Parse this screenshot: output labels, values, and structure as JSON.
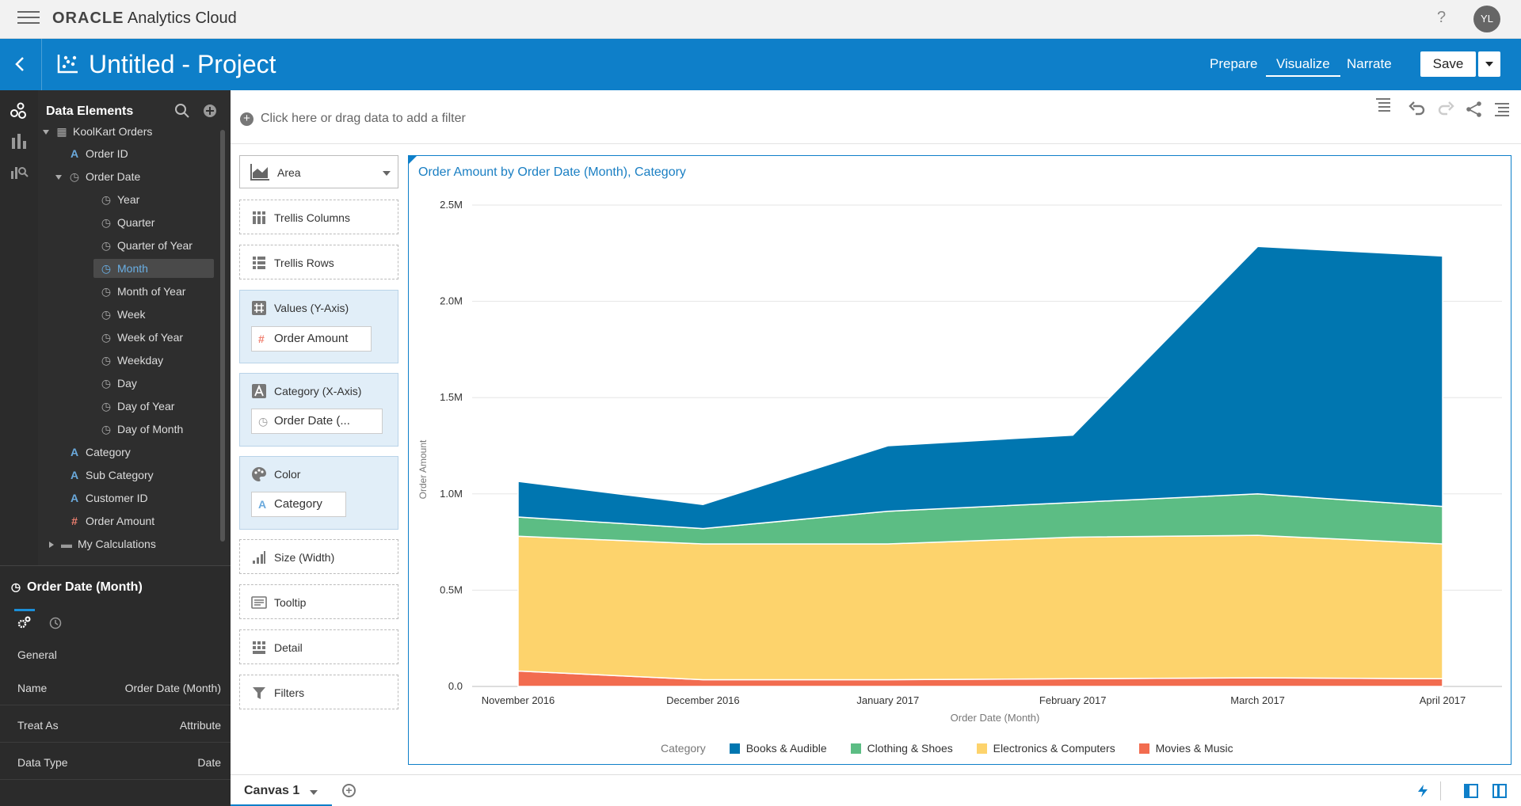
{
  "topbar": {
    "brand_strong": "ORACLE",
    "brand_rest": " Analytics Cloud",
    "help": "?",
    "avatar": "YL"
  },
  "header": {
    "project_title": "Untitled - Project",
    "tabs": [
      {
        "label": "Prepare"
      },
      {
        "label": "Visualize"
      },
      {
        "label": "Narrate"
      }
    ],
    "save_label": "Save"
  },
  "data_panel": {
    "title": "Data Elements",
    "items": [
      {
        "label": "KoolKart Orders"
      },
      {
        "label": "Order ID"
      },
      {
        "label": "Order Date"
      },
      {
        "label": "Year"
      },
      {
        "label": "Quarter"
      },
      {
        "label": "Quarter of Year"
      },
      {
        "label": "Month"
      },
      {
        "label": "Month of Year"
      },
      {
        "label": "Week"
      },
      {
        "label": "Week of Year"
      },
      {
        "label": "Weekday"
      },
      {
        "label": "Day"
      },
      {
        "label": "Day of Year"
      },
      {
        "label": "Day of Month"
      },
      {
        "label": "Category"
      },
      {
        "label": "Sub Category"
      },
      {
        "label": "Customer ID"
      },
      {
        "label": "Order Amount"
      },
      {
        "label": "My Calculations"
      }
    ]
  },
  "properties": {
    "title": "Order Date (Month)",
    "section": "General",
    "rows": [
      {
        "key": "Name",
        "value": "Order Date (Month)"
      },
      {
        "key": "Treat As",
        "value": "Attribute"
      },
      {
        "key": "Data Type",
        "value": "Date"
      }
    ]
  },
  "filterbar": {
    "placeholder": "Click here or drag data to add a filter"
  },
  "grammar": {
    "viz_type": "Area",
    "trellis_columns": "Trellis Columns",
    "trellis_rows": "Trellis Rows",
    "values_label": "Values (Y-Axis)",
    "values_pill": "Order Amount",
    "category_label": "Category (X-Axis)",
    "category_pill": "Order Date (...",
    "color_label": "Color",
    "color_pill": "Category",
    "size_label": "Size (Width)",
    "tooltip_label": "Tooltip",
    "detail_label": "Detail",
    "filters_label": "Filters"
  },
  "chart_data": {
    "type": "area",
    "stacked": true,
    "title": "Order Amount by Order Date (Month), Category",
    "xlabel": "Order Date (Month)",
    "ylabel": "Order Amount",
    "categories": [
      "November 2016",
      "December 2016",
      "January 2017",
      "February 2017",
      "March 2017",
      "April 2017"
    ],
    "ylim": [
      0,
      2500000
    ],
    "yticks": [
      {
        "value": 0,
        "label": "0.0"
      },
      {
        "value": 500000,
        "label": "0.5M"
      },
      {
        "value": 1000000,
        "label": "1.0M"
      },
      {
        "value": 1500000,
        "label": "1.5M"
      },
      {
        "value": 2000000,
        "label": "2.0M"
      },
      {
        "value": 2500000,
        "label": "2.5M"
      }
    ],
    "legend_title": "Category",
    "legend_position": "bottom",
    "grid": true,
    "series": [
      {
        "name": "Movies & Music",
        "color": "#f26c4f",
        "values": [
          80000,
          35000,
          35000,
          40000,
          45000,
          40000
        ]
      },
      {
        "name": "Electronics & Computers",
        "color": "#fdd36c",
        "values": [
          700000,
          705000,
          705000,
          735000,
          740000,
          700000
        ]
      },
      {
        "name": "Clothing & Shoes",
        "color": "#5cbd84",
        "values": [
          100000,
          80000,
          170000,
          180000,
          215000,
          195000
        ]
      },
      {
        "name": "Books & Audible",
        "color": "#0076b0",
        "values": [
          185000,
          125000,
          340000,
          350000,
          1285000,
          1300000
        ]
      }
    ]
  },
  "bottombar": {
    "canvas_tab": "Canvas 1"
  }
}
